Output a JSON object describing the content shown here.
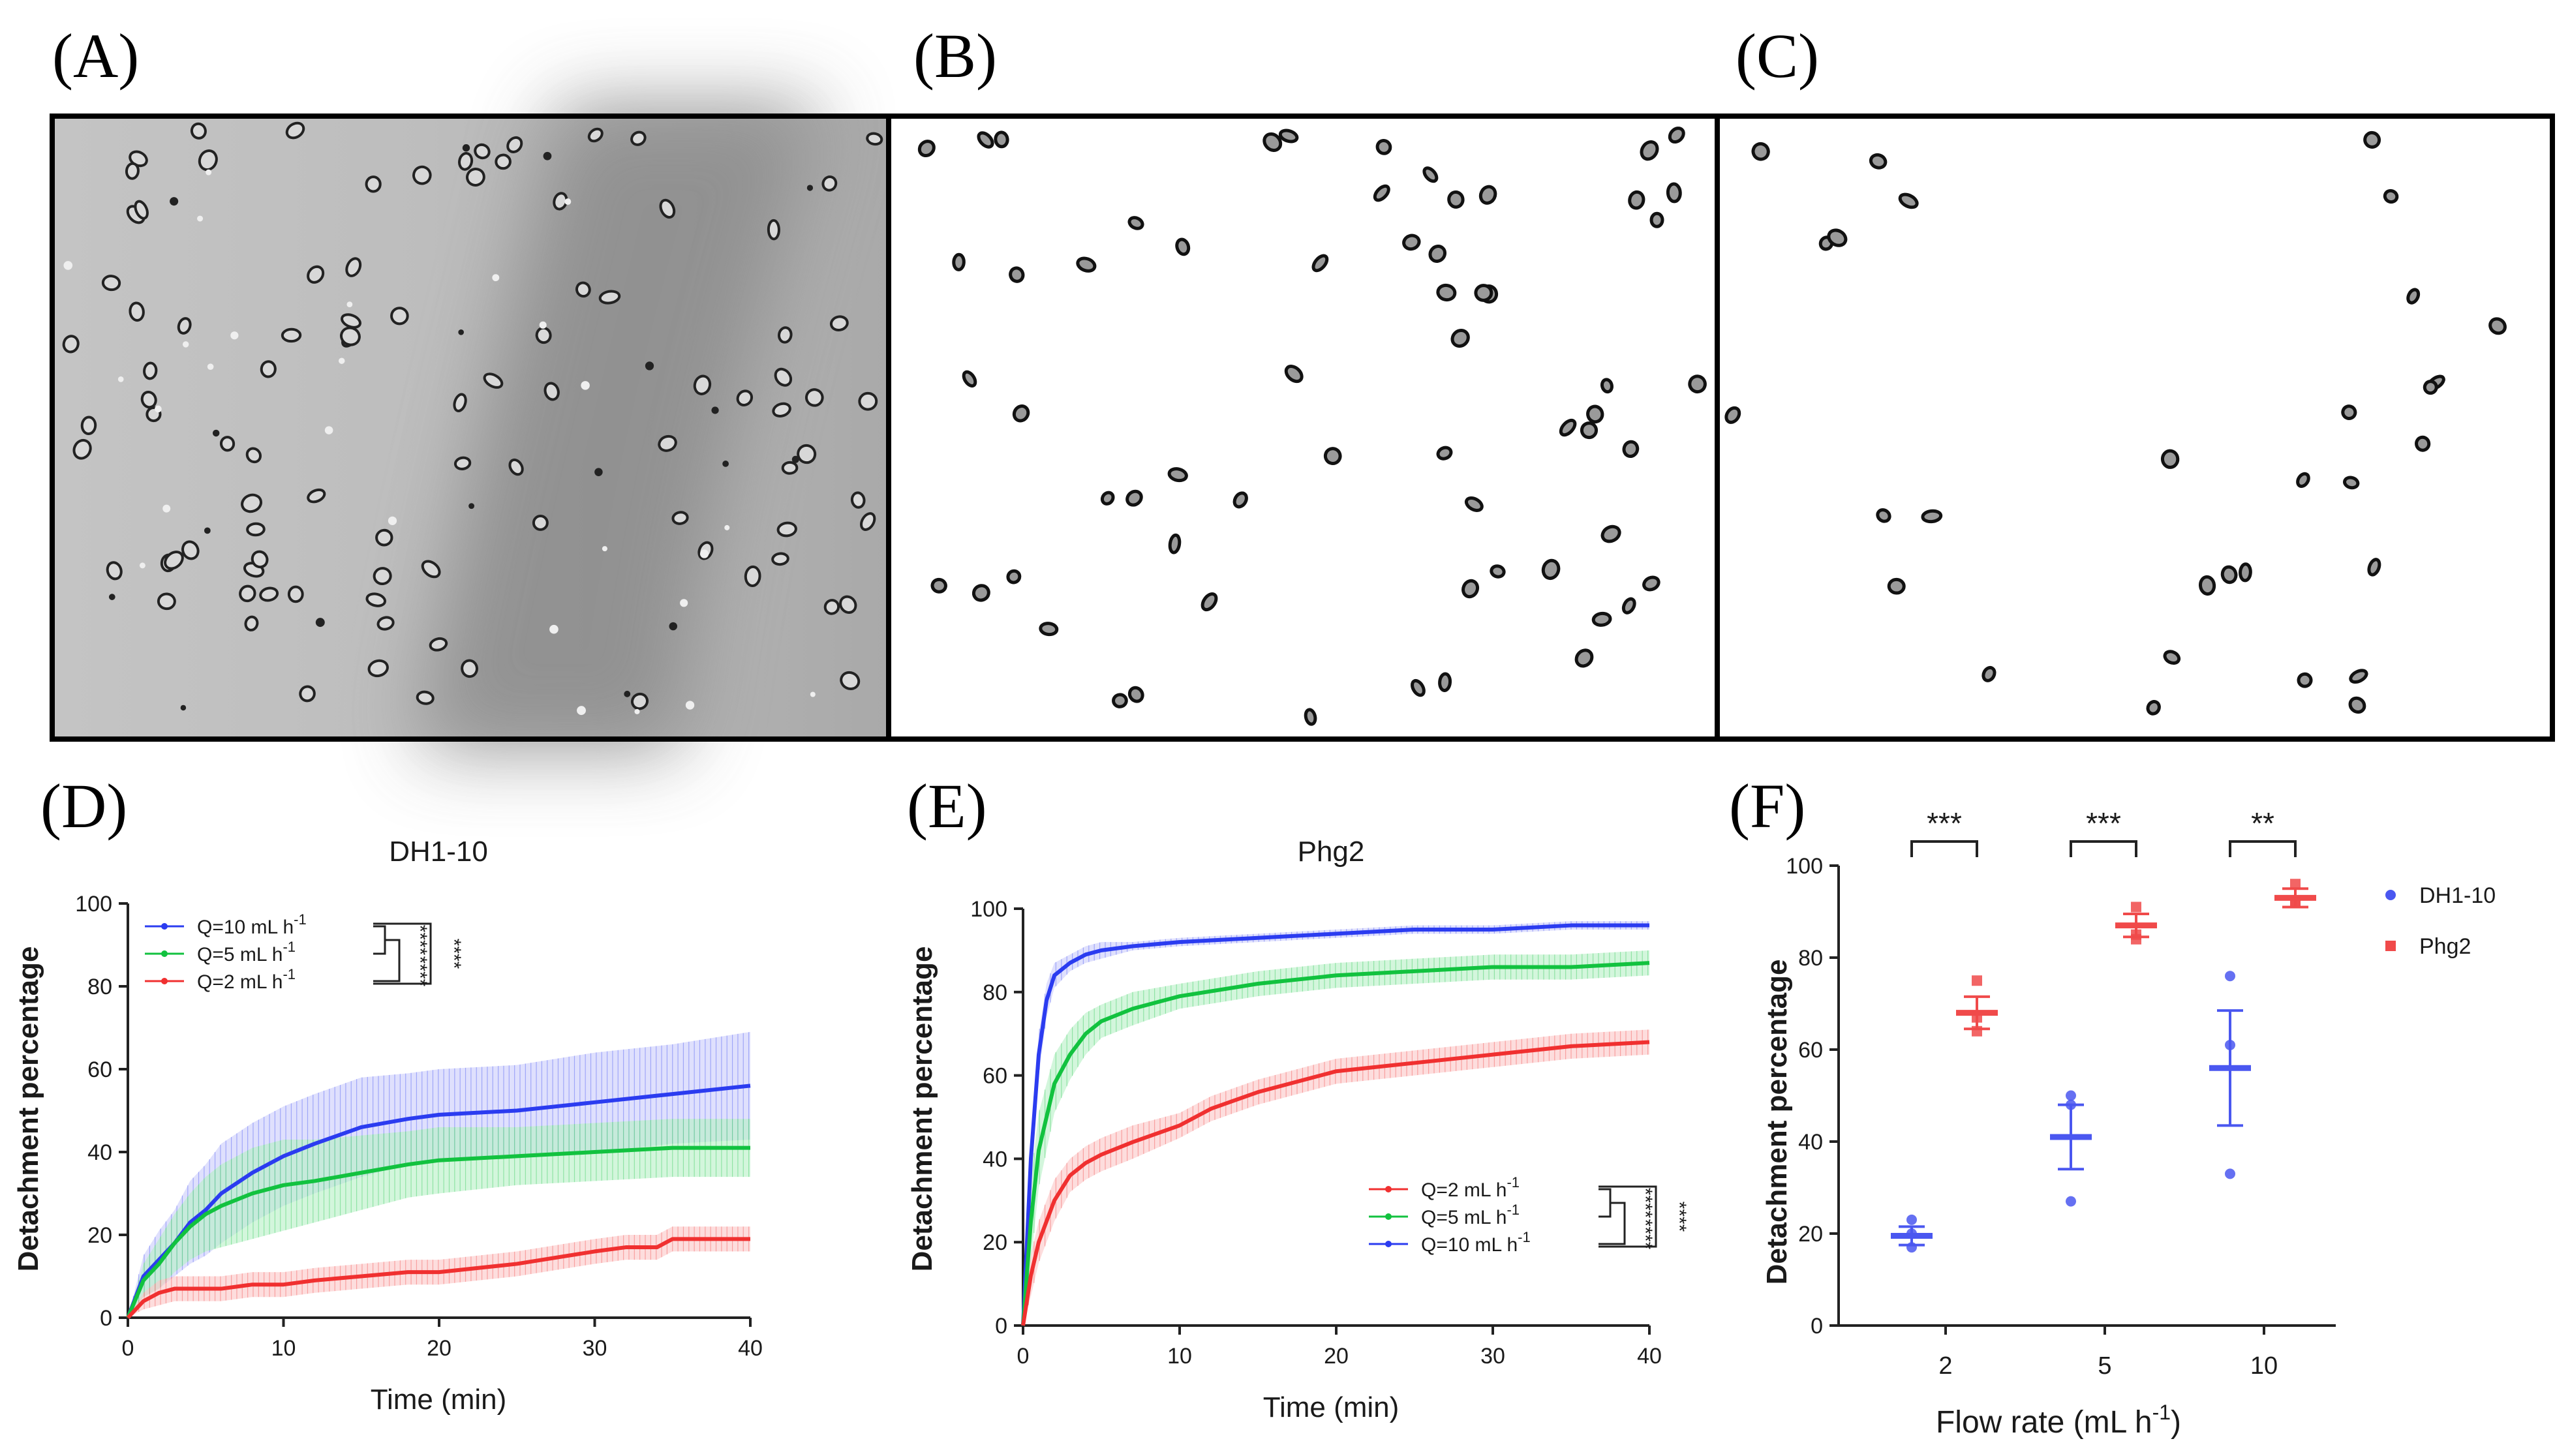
{
  "panel_labels": [
    "(A)",
    "(B)",
    "(C)",
    "(D)",
    "(E)",
    "(F)"
  ],
  "colors": {
    "blue": "#2b3cf0",
    "green": "#12c23f",
    "red": "#f03030",
    "blue_band": "#c9ccfb",
    "green_band": "#b6f0c4",
    "red_band": "#fbc6c6"
  },
  "microscopy": {
    "A": {
      "style": "grayscale brightfield micrograph"
    },
    "B": {
      "style": "binarized micrograph"
    },
    "C": {
      "style": "binarized micrograph"
    }
  },
  "chart_data": [
    {
      "type": "line",
      "panel": "D",
      "title": "DH1-10",
      "xlabel": "Time (min)",
      "ylabel": "Detachment percentage",
      "xlim": [
        0,
        40
      ],
      "ylim": [
        0,
        100
      ],
      "xticks": [
        "0",
        "10",
        "20",
        "30",
        "40"
      ],
      "yticks": [
        "0",
        "20",
        "40",
        "60",
        "80",
        "100"
      ],
      "grid": false,
      "legend_position": "top-left",
      "legend": [
        {
          "label": "Q=10 mL h",
          "sup": "-1",
          "color": "#2b3cf0"
        },
        {
          "label": "Q=5 mL h",
          "sup": "-1",
          "color": "#12c23f"
        },
        {
          "label": "Q=2 mL h",
          "sup": "-1",
          "color": "#f03030"
        }
      ],
      "significance": [
        "****",
        "****",
        "****"
      ],
      "series": [
        {
          "name": "Q=10 mL h-1",
          "color": "#2b3cf0",
          "x": [
            0,
            1,
            2,
            3,
            4,
            5,
            6,
            8,
            10,
            12,
            15,
            18,
            20,
            25,
            30,
            35,
            40
          ],
          "y": [
            0,
            10,
            14,
            18,
            23,
            26,
            30,
            35,
            39,
            42,
            46,
            48,
            49,
            50,
            52,
            54,
            56
          ],
          "err": [
            0,
            5,
            7,
            8,
            10,
            11,
            12,
            12,
            12,
            12,
            12,
            11,
            11,
            11,
            12,
            12,
            13
          ]
        },
        {
          "name": "Q=5 mL h-1",
          "color": "#12c23f",
          "x": [
            0,
            1,
            2,
            3,
            4,
            5,
            6,
            8,
            10,
            12,
            15,
            18,
            20,
            25,
            30,
            35,
            40
          ],
          "y": [
            0,
            9,
            13,
            18,
            22,
            25,
            27,
            30,
            32,
            33,
            35,
            37,
            38,
            39,
            40,
            41,
            41
          ],
          "err": [
            0,
            4,
            6,
            7,
            8,
            9,
            10,
            11,
            11,
            10,
            9,
            8,
            8,
            7,
            7,
            7,
            7
          ]
        },
        {
          "name": "Q=2 mL h-1",
          "color": "#f03030",
          "x": [
            0,
            1,
            2,
            3,
            4,
            6,
            8,
            10,
            12,
            15,
            18,
            20,
            25,
            30,
            32,
            34,
            35,
            40
          ],
          "y": [
            0,
            4,
            6,
            7,
            7,
            7,
            8,
            8,
            9,
            10,
            11,
            11,
            13,
            16,
            17,
            17,
            19,
            19
          ],
          "err": [
            0,
            2,
            3,
            3,
            3,
            3,
            3,
            3,
            3,
            3,
            3,
            3,
            3,
            3,
            3,
            3,
            3,
            3
          ]
        }
      ]
    },
    {
      "type": "line",
      "panel": "E",
      "title": "Phg2",
      "xlabel": "Time (min)",
      "ylabel": "Detachment percentage",
      "xlim": [
        0,
        40
      ],
      "ylim": [
        0,
        100
      ],
      "xticks": [
        "0",
        "10",
        "20",
        "30",
        "40"
      ],
      "yticks": [
        "0",
        "20",
        "40",
        "60",
        "80",
        "100"
      ],
      "grid": false,
      "legend_position": "bottom-right",
      "legend": [
        {
          "label": "Q=2 mL h",
          "sup": "-1",
          "color": "#f03030"
        },
        {
          "label": "Q=5 mL h",
          "sup": "-1",
          "color": "#12c23f"
        },
        {
          "label": "Q=10 mL h",
          "sup": "-1",
          "color": "#2b3cf0"
        }
      ],
      "significance": [
        "****",
        "****",
        "****"
      ],
      "series": [
        {
          "name": "Q=10 mL h-1",
          "color": "#2b3cf0",
          "x": [
            0,
            0.5,
            1,
            1.5,
            2,
            3,
            4,
            5,
            7,
            10,
            15,
            20,
            25,
            30,
            35,
            40
          ],
          "y": [
            0,
            40,
            65,
            78,
            84,
            87,
            89,
            90,
            91,
            92,
            93,
            94,
            95,
            95,
            96,
            96
          ],
          "err": [
            0,
            5,
            5,
            4,
            3,
            2,
            2,
            2,
            1,
            1,
            1,
            1,
            1,
            1,
            1,
            1
          ]
        },
        {
          "name": "Q=5 mL h-1",
          "color": "#12c23f",
          "x": [
            0,
            0.5,
            1,
            2,
            3,
            4,
            5,
            7,
            10,
            15,
            20,
            25,
            30,
            35,
            40
          ],
          "y": [
            0,
            25,
            42,
            58,
            65,
            70,
            73,
            76,
            79,
            82,
            84,
            85,
            86,
            86,
            87
          ],
          "err": [
            0,
            10,
            9,
            7,
            6,
            5,
            4,
            4,
            3,
            3,
            3,
            3,
            3,
            3,
            3
          ]
        },
        {
          "name": "Q=2 mL h-1",
          "color": "#f03030",
          "x": [
            0,
            0.5,
            1,
            2,
            3,
            4,
            5,
            7,
            10,
            12,
            15,
            20,
            25,
            30,
            35,
            40
          ],
          "y": [
            0,
            12,
            20,
            30,
            36,
            39,
            41,
            44,
            48,
            52,
            56,
            61,
            63,
            65,
            67,
            68
          ],
          "err": [
            0,
            5,
            5,
            5,
            4,
            4,
            4,
            4,
            3,
            3,
            3,
            3,
            3,
            3,
            3,
            3
          ]
        }
      ]
    },
    {
      "type": "scatter",
      "panel": "F",
      "xlabel": "Flow rate (mL h",
      "xlabel_sup": "-1",
      "xlabel_suffix": ")",
      "ylabel": "Detachment percentage",
      "categories": [
        "2",
        "5",
        "10"
      ],
      "ylim": [
        0,
        100
      ],
      "yticks": [
        "0",
        "20",
        "40",
        "60",
        "80",
        "100"
      ],
      "grid": false,
      "legend_position": "right",
      "significance": [
        "***",
        "***",
        "**"
      ],
      "series": [
        {
          "name": "DH1-10",
          "color": "#4a57f0",
          "marker": "circle",
          "points": [
            [
              20,
              17,
              23
            ],
            [
              48,
              50,
              27
            ],
            [
              76,
              61,
              33
            ]
          ],
          "mean": [
            19.5,
            41,
            56
          ],
          "sem": [
            2,
            7,
            12.5
          ]
        },
        {
          "name": "Phg2",
          "color": "#f04a4a",
          "marker": "square",
          "points": [
            [
              75,
              67,
              64
            ],
            [
              91,
              85,
              84
            ],
            [
              96,
              92,
              92
            ]
          ],
          "mean": [
            68,
            87,
            93
          ],
          "sem": [
            3.5,
            2.5,
            2
          ]
        }
      ]
    }
  ]
}
